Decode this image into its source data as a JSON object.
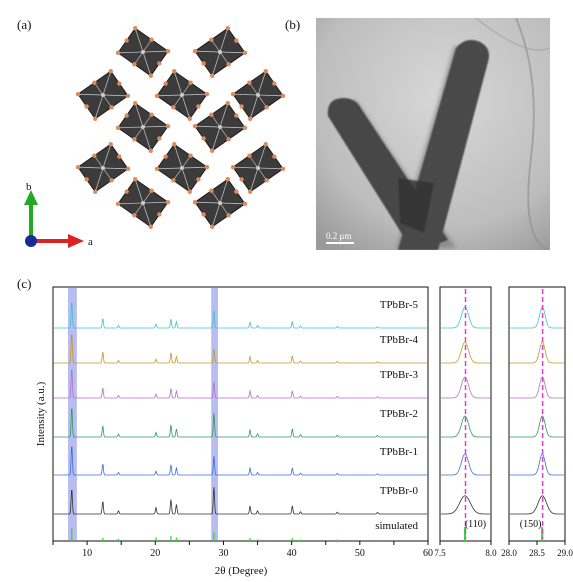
{
  "panels": {
    "a": "(a)",
    "b": "(b)",
    "c": "(c)"
  },
  "crystal": {
    "axis_b": "b",
    "axis_a": "a",
    "colors": {
      "octahedron": "#3b3b3b",
      "edge": "#d9d9d9",
      "atom": "#e08a5a",
      "axis_b": "#22aa22",
      "axis_a": "#dd2222",
      "origin": "#1a2a99"
    }
  },
  "tem": {
    "scale_bar": "0.2 μm"
  },
  "chart_data": [
    {
      "type": "line",
      "title": "",
      "xlabel": "2θ (Degree)",
      "ylabel": "Intensity (a.u.)",
      "xlim": [
        5,
        60
      ],
      "xticks": [
        5,
        10,
        15,
        20,
        25,
        30,
        35,
        40,
        45,
        50,
        55,
        60
      ],
      "highlight_bands": [
        [
          7.2,
          8.5
        ],
        [
          28.2,
          29.2
        ]
      ],
      "peaks": [
        7.75,
        12.3,
        14.6,
        20.1,
        22.3,
        23.1,
        28.6,
        33.9,
        35.0,
        40.1,
        41.3,
        46.7,
        52.6
      ],
      "series": [
        {
          "name": "TPbBr-5",
          "color": "#3cc4d0",
          "peak_heights": [
            0.85,
            0.3,
            0.08,
            0.12,
            0.28,
            0.2,
            0.55,
            0.18,
            0.08,
            0.2,
            0.06,
            0.05,
            0.04
          ]
        },
        {
          "name": "TPbBr-4",
          "color": "#c9952a",
          "peak_heights": [
            0.95,
            0.35,
            0.08,
            0.12,
            0.32,
            0.2,
            0.45,
            0.2,
            0.08,
            0.22,
            0.06,
            0.05,
            0.04
          ]
        },
        {
          "name": "TPbBr-3",
          "color": "#b76fc8",
          "peak_heights": [
            0.95,
            0.32,
            0.08,
            0.12,
            0.3,
            0.22,
            0.5,
            0.22,
            0.08,
            0.22,
            0.06,
            0.05,
            0.04
          ]
        },
        {
          "name": "TPbBr-2",
          "color": "#2e9a5a",
          "peak_heights": [
            0.95,
            0.35,
            0.09,
            0.14,
            0.38,
            0.25,
            0.75,
            0.22,
            0.1,
            0.25,
            0.07,
            0.06,
            0.05
          ]
        },
        {
          "name": "TPbBr-1",
          "color": "#3a6fd6",
          "peak_heights": [
            0.95,
            0.35,
            0.08,
            0.12,
            0.32,
            0.22,
            0.6,
            0.22,
            0.08,
            0.22,
            0.06,
            0.05,
            0.04
          ]
        },
        {
          "name": "TPbBr-0",
          "color": "#333333",
          "peak_heights": [
            0.8,
            0.4,
            0.1,
            0.2,
            0.45,
            0.3,
            0.85,
            0.25,
            0.1,
            0.25,
            0.07,
            0.06,
            0.05
          ]
        },
        {
          "name": "simulated",
          "color": "#33dd33",
          "peak_heights": [
            0.9,
            0.2,
            0.15,
            0.25,
            0.35,
            0.25,
            0.6,
            0.2,
            0.12,
            0.2,
            0.1,
            0.1,
            0.08
          ]
        }
      ]
    },
    {
      "type": "line",
      "xlim": [
        7.5,
        8.0
      ],
      "xticks": [
        7.5,
        8.0
      ],
      "reference_line": 7.75,
      "annotation": "(110)"
    },
    {
      "type": "line",
      "xlim": [
        28.0,
        29.0
      ],
      "xticks": [
        28.0,
        28.5,
        29.0
      ],
      "reference_line": 28.6,
      "annotation": "(150)"
    }
  ]
}
